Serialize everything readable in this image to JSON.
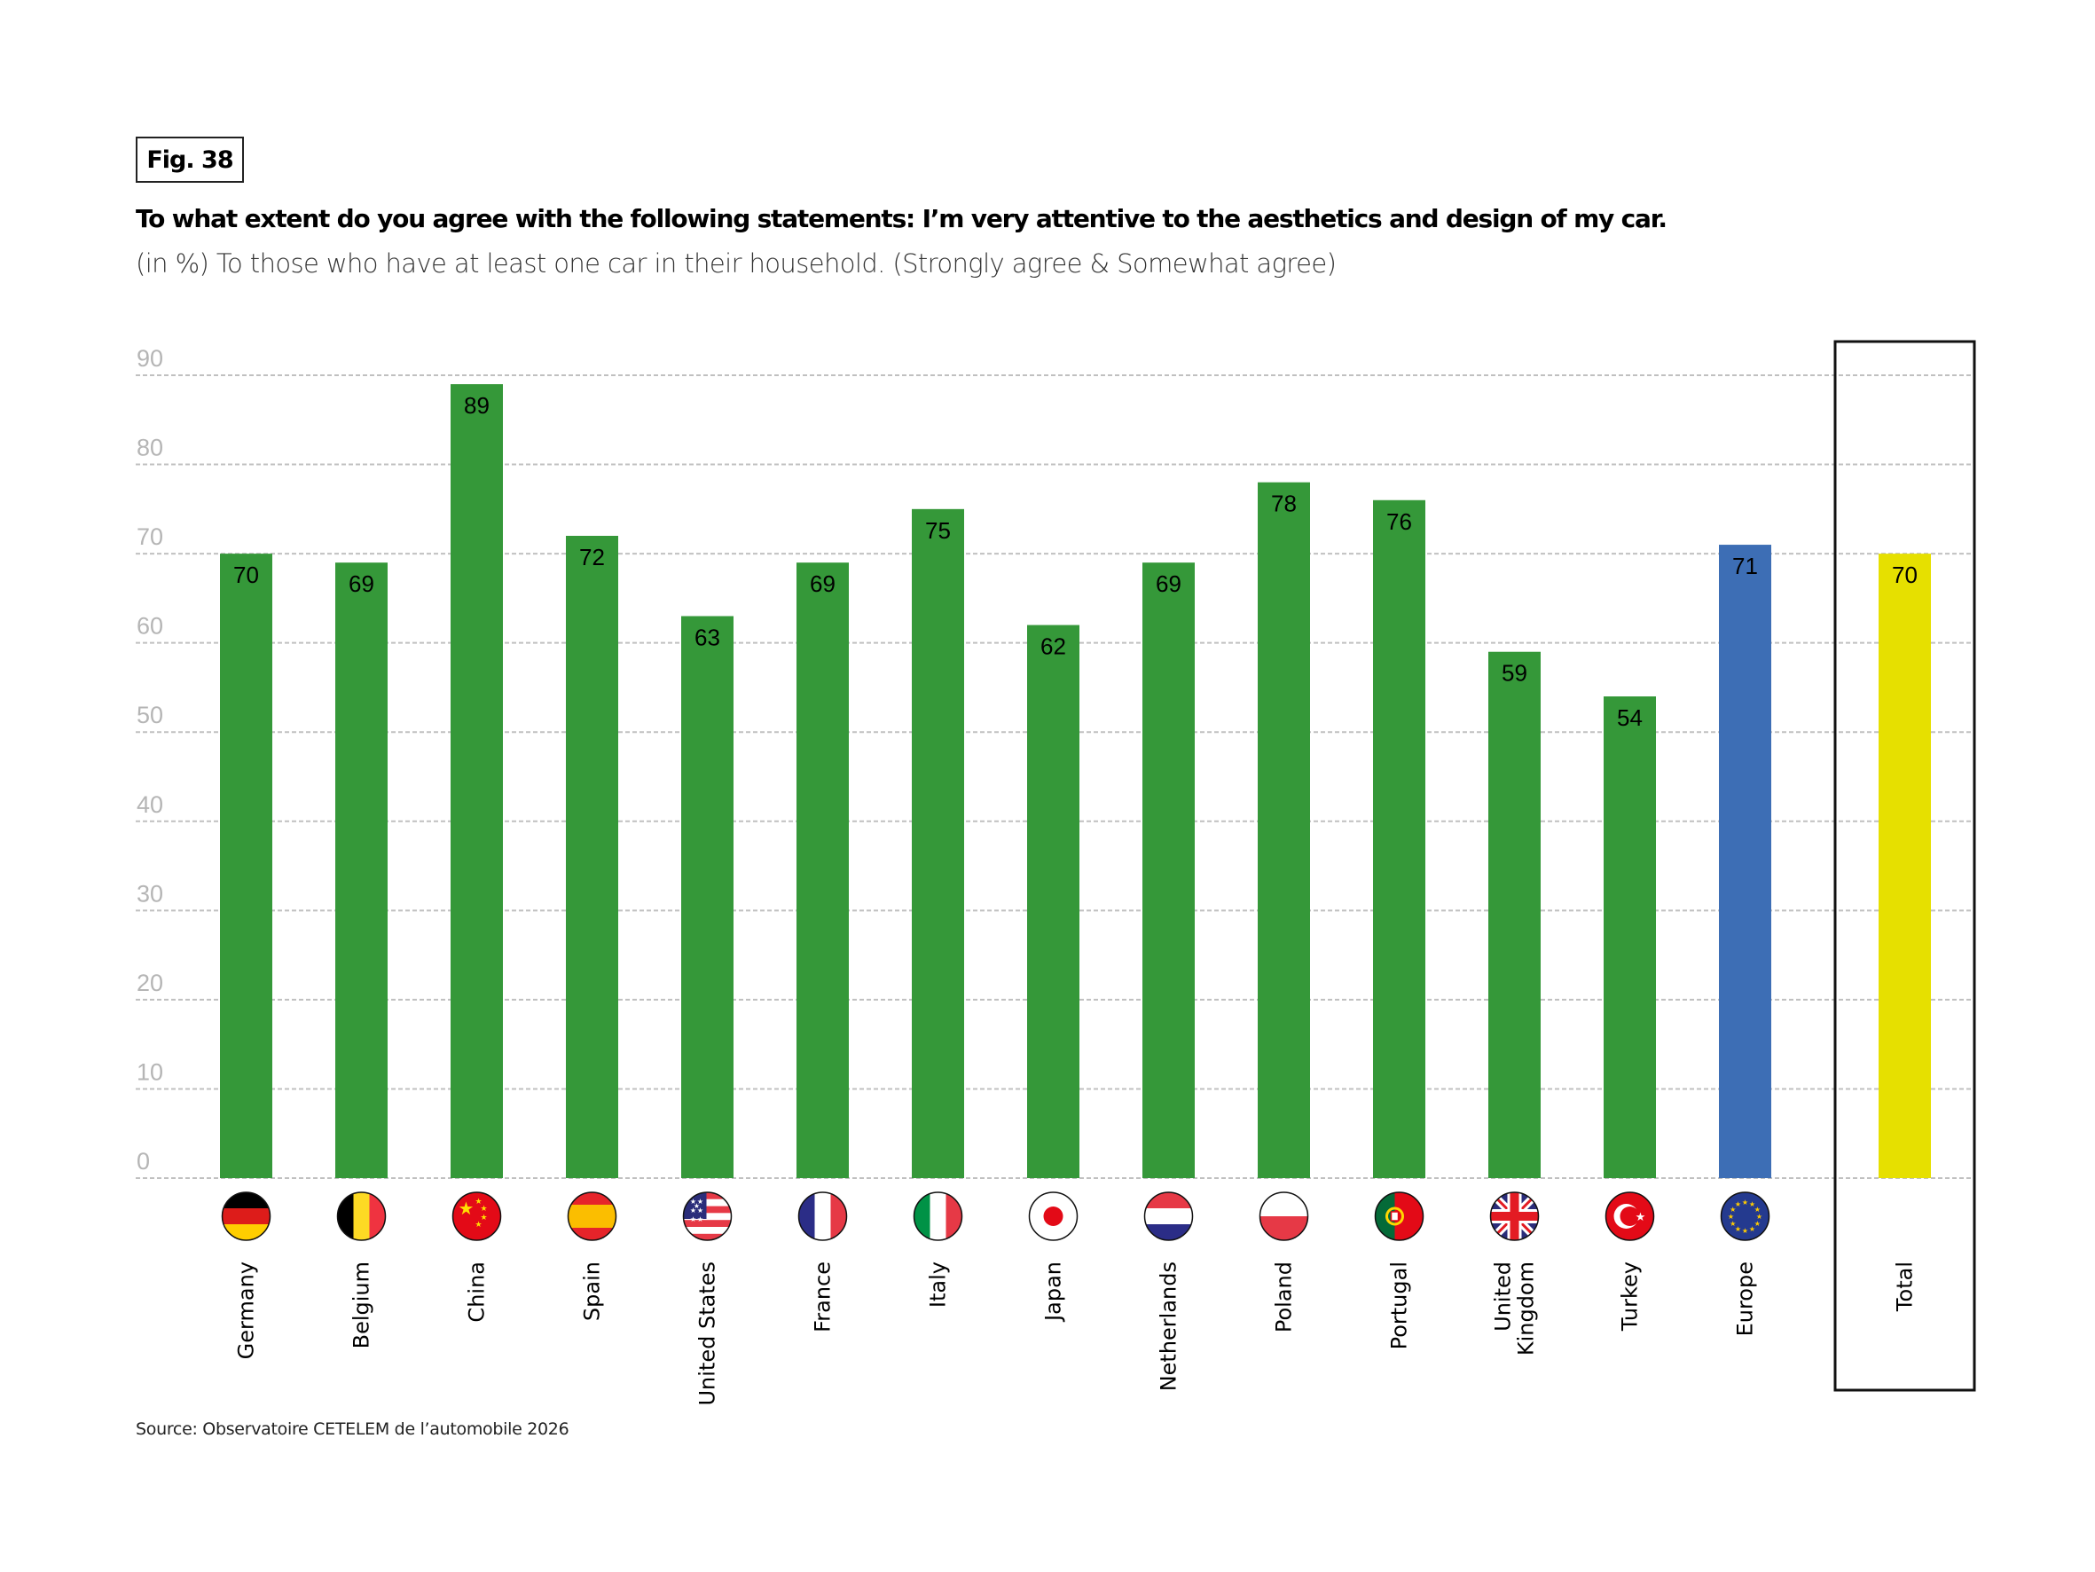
{
  "figure": {
    "label": "Fig. 38",
    "title": "To what extent do you agree with the following statements: I’m very attentive to the aesthetics and design of my car.",
    "subtitle": "(in %) To those who have at least one car in their household. (Strongly agree & Somewhat agree)",
    "source": "Source: Observatoire CETELEM de l’automobile 2026"
  },
  "colors": {
    "country": "#359839",
    "europe": "#3d6eb5",
    "total": "#e6e000",
    "grid": "#c0c0c0",
    "tick_text": "#b5b5b5"
  },
  "chart_data": {
    "type": "bar",
    "title": "To what extent do you agree with the following statements: I’m very attentive to the aesthetics and design of my car.",
    "subtitle": "(in %) To those who have at least one car in their household. (Strongly agree & Somewhat agree)",
    "xlabel": "",
    "ylabel": "",
    "ylim": [
      0,
      90
    ],
    "yticks": [
      0,
      10,
      20,
      30,
      40,
      50,
      60,
      70,
      80,
      90
    ],
    "grid": true,
    "legend": "none",
    "categories": [
      "Germany",
      "Belgium",
      "China",
      "Spain",
      "United States",
      "France",
      "Italy",
      "Japan",
      "Netherlands",
      "Poland",
      "Portugal",
      "United Kingdom",
      "Turkey",
      "Europe",
      "Total"
    ],
    "category_label_lines": [
      [
        "Germany"
      ],
      [
        "Belgium"
      ],
      [
        "China"
      ],
      [
        "Spain"
      ],
      [
        "United States"
      ],
      [
        "France"
      ],
      [
        "Italy"
      ],
      [
        "Japan"
      ],
      [
        "Netherlands"
      ],
      [
        "Poland"
      ],
      [
        "Portugal"
      ],
      [
        "United",
        "Kingdom"
      ],
      [
        "Turkey"
      ],
      [
        "Europe"
      ],
      [
        "Total"
      ]
    ],
    "values": [
      70,
      69,
      89,
      72,
      63,
      69,
      75,
      62,
      69,
      78,
      76,
      59,
      54,
      71,
      70
    ],
    "bar_kind": [
      "country",
      "country",
      "country",
      "country",
      "country",
      "country",
      "country",
      "country",
      "country",
      "country",
      "country",
      "country",
      "country",
      "europe",
      "total"
    ],
    "flags": [
      "germany-flag-icon",
      "belgium-flag-icon",
      "china-flag-icon",
      "spain-flag-icon",
      "united-states-flag-icon",
      "france-flag-icon",
      "italy-flag-icon",
      "japan-flag-icon",
      "netherlands-flag-icon",
      "poland-flag-icon",
      "portugal-flag-icon",
      "united-kingdom-flag-icon",
      "turkey-flag-icon",
      "europe-flag-icon",
      null
    ],
    "highlighted_category": "Total"
  }
}
